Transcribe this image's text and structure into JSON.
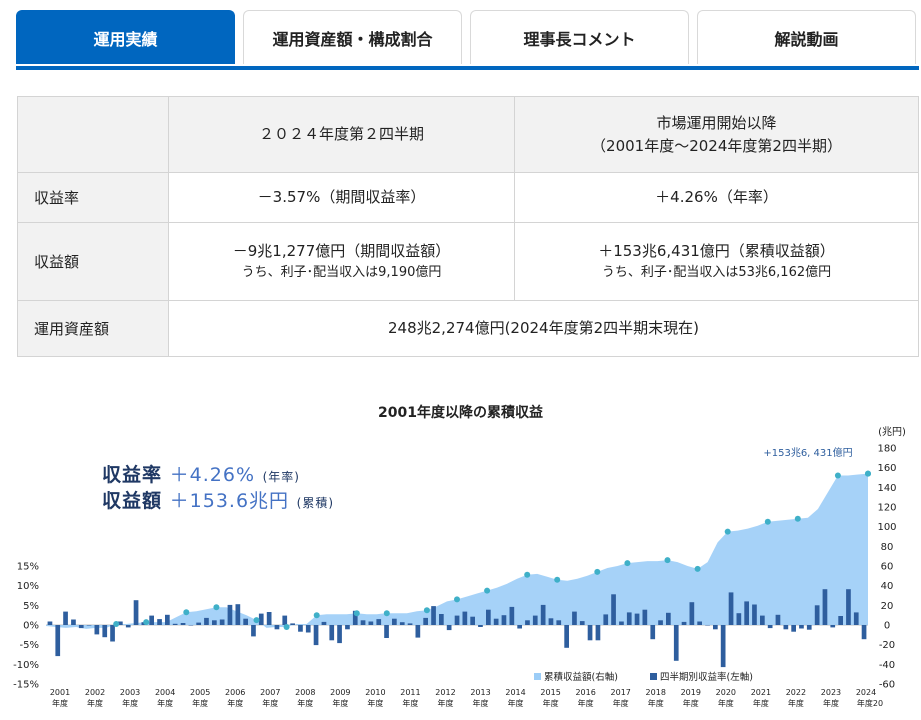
{
  "tabs": [
    {
      "label": "運用実績",
      "active": true
    },
    {
      "label": "運用資産額・構成割合",
      "active": false
    },
    {
      "label": "理事長コメント",
      "active": false
    },
    {
      "label": "解説動画",
      "active": false
    }
  ],
  "table": {
    "col1_header": "２０２４年度第２四半期",
    "col2_header_line1": "市場運用開始以降",
    "col2_header_line2": "（2001年度～2024年度第2四半期）",
    "rows": {
      "rate_label": "収益率",
      "rate_q": "－3.57%（期間収益率）",
      "rate_total": "＋4.26%（年率）",
      "amount_label": "収益額",
      "amount_q": "－9兆1,277億円（期間収益額）",
      "amount_q_sub": "うち、利子･配当収入は9,190億円",
      "amount_total": "＋153兆6,431億円（累積収益額）",
      "amount_total_sub": "うち、利子･配当収入は53兆6,162億円",
      "assets_label": "運用資産額",
      "assets_value": "248兆2,274億円(2024年度第2四半期末現在)"
    }
  },
  "chart_title": "2001年度以降の累積収益",
  "annotation": {
    "rate_label": "収益率",
    "rate_value": "＋4.26%",
    "rate_note": "(年率)",
    "amount_label": "収益額",
    "amount_value": "＋153.6兆円",
    "amount_note": "(累積)"
  },
  "chart_data": {
    "type": "bar+area",
    "title": "2001年度以降の累積収益",
    "right_axis_unit": "(兆円)",
    "right_ylim": [
      -60,
      180
    ],
    "right_ticks": [
      -60,
      -40,
      -20,
      0,
      20,
      40,
      60,
      80,
      100,
      120,
      140,
      160,
      180
    ],
    "left_ylim": [
      -15,
      15
    ],
    "left_ticks": [
      "-15%",
      "-10%",
      "-5%",
      "0%",
      "5%",
      "10%",
      "15%"
    ],
    "x_labels": [
      "2001",
      "2002",
      "2003",
      "2004",
      "2005",
      "2006",
      "2007",
      "2008",
      "2009",
      "2010",
      "2011",
      "2012",
      "2013",
      "2014",
      "2015",
      "2016",
      "2017",
      "2018",
      "2019",
      "2020",
      "2021",
      "2022",
      "2023",
      "2024"
    ],
    "x_sublabel": "年度",
    "last_sublabel": "年度20",
    "cumulative_label": "+153兆6, 431億円",
    "legend": [
      "累積収益額(右軸)",
      "四半期別収益率(左軸)"
    ],
    "series": [
      {
        "name": "累積収益額(右軸)",
        "color": "#9ccdf7",
        "values": [
          -1,
          -2,
          -3,
          -2,
          -4,
          -3,
          -3,
          1,
          1,
          2,
          3,
          3,
          3,
          8,
          13,
          14,
          16,
          18,
          18,
          14,
          10,
          5,
          -3,
          -2,
          -2,
          1,
          1,
          10,
          11,
          11,
          11,
          12,
          11,
          11,
          12,
          12,
          12,
          14,
          15,
          19,
          24,
          26,
          29,
          32,
          35,
          38,
          42,
          47,
          51,
          52,
          49,
          46,
          45,
          47,
          50,
          54,
          58,
          60,
          63,
          64,
          65,
          65,
          66,
          64,
          60,
          57,
          64,
          84,
          95,
          96,
          98,
          101,
          105,
          106,
          107,
          108,
          109,
          118,
          135,
          152,
          152,
          153,
          154
        ]
      },
      {
        "name": "四半期別収益率(左軸)",
        "color": "#2e5e9e",
        "values": [
          0.9,
          -7.9,
          3.4,
          1.4,
          -0.8,
          -0.1,
          -2.4,
          -3.1,
          -4.2,
          0.9,
          -0.6,
          6.3,
          0.7,
          2.4,
          1.5,
          2.6,
          0.3,
          0.5,
          -0.1,
          0.6,
          1.8,
          1.2,
          1.4,
          5.1,
          5.3,
          1.6,
          -2.9,
          2.9,
          3.3,
          -1.1,
          2.4,
          0.4,
          -1.7,
          -1.9,
          -5.1,
          0.8,
          -3.9,
          -4.6,
          -1.1,
          3.6,
          1.2,
          0.9,
          1.5,
          -3.3,
          1.6,
          0.7,
          0.4,
          -3.2,
          1.8,
          4.8,
          2.8,
          -1.3,
          2.4,
          3.4,
          2.1,
          -0.5,
          3.9,
          1.6,
          2.5,
          4.6,
          -0.9,
          1.2,
          2.4,
          5.1,
          1.7,
          1.2,
          -5.8,
          3.4,
          1.0,
          -3.9,
          -3.9,
          2.7,
          7.8,
          0.9,
          3.2,
          2.9,
          3.9,
          -3.6,
          1.2,
          3.1,
          -9.1,
          0.8,
          5.8,
          0.9,
          -0.1,
          -1.1,
          -10.7,
          8.3,
          3.0,
          6.0,
          5.2,
          2.4,
          -0.8,
          2.6,
          -1.1,
          -1.7,
          -0.9,
          -1.2,
          5.0,
          9.1,
          -0.6,
          2.3,
          9.1,
          3.2,
          -3.6
        ]
      }
    ],
    "quarterly_return_values_note": "bars are per quarter; markers shown each fiscal year end"
  }
}
